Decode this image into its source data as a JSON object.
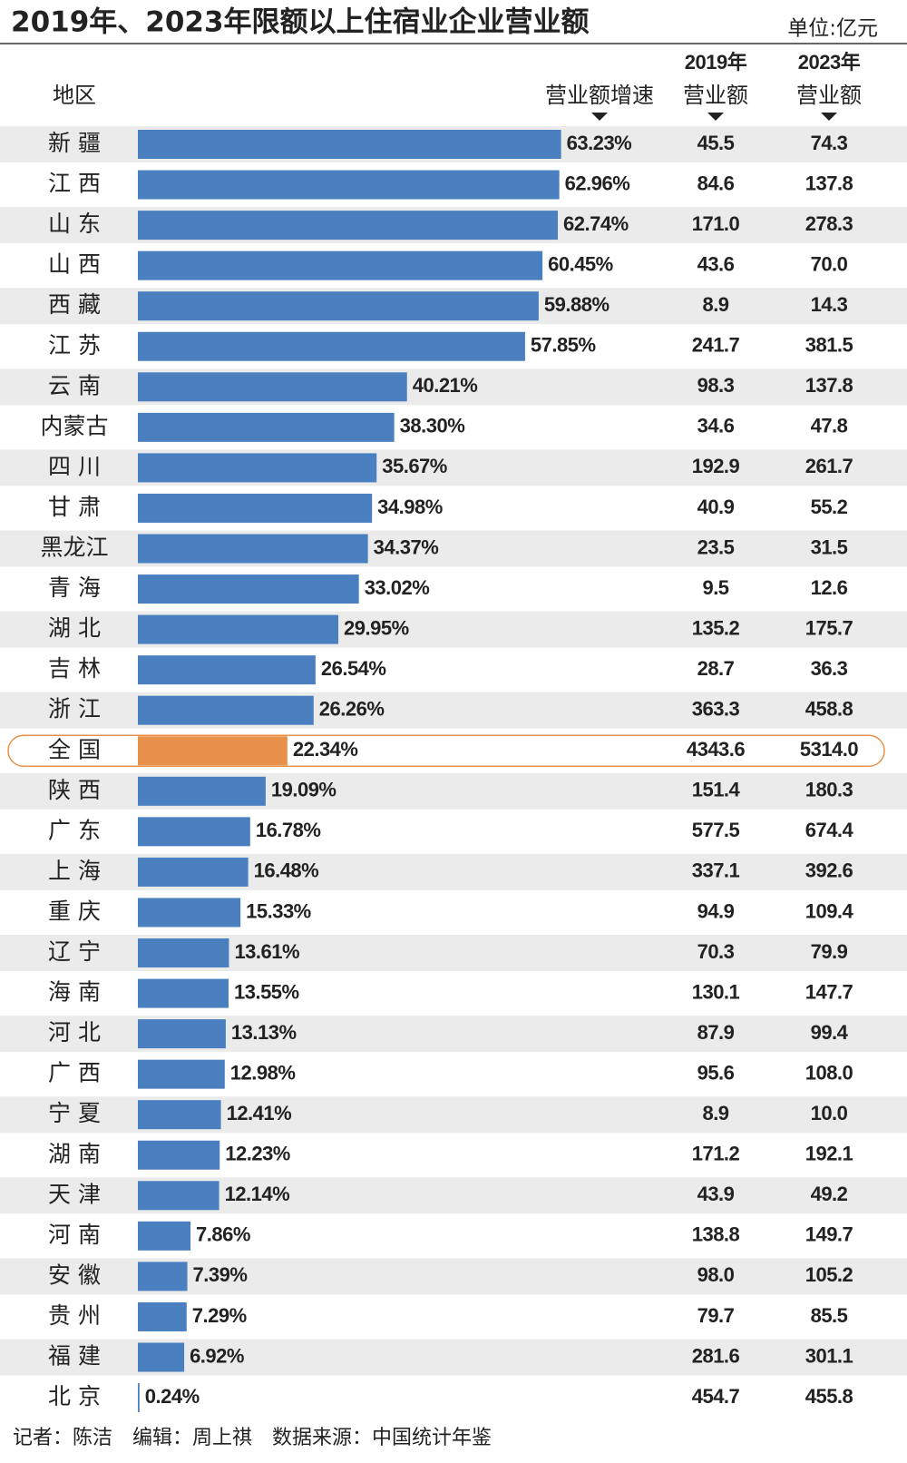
{
  "chart_data": {
    "type": "bar",
    "title": "2019年、2023年限额以上住宿业企业营业额",
    "unit": "单位:亿元",
    "category_header": "地区",
    "categories": [
      "新 疆",
      "江 西",
      "山 东",
      "山 西",
      "西 藏",
      "江 苏",
      "云 南",
      "内蒙古",
      "四 川",
      "甘 肃",
      "黑龙江",
      "青 海",
      "湖 北",
      "吉 林",
      "浙 江",
      "全 国",
      "陕 西",
      "广 东",
      "上 海",
      "重 庆",
      "辽 宁",
      "海 南",
      "河 北",
      "广 西",
      "宁 夏",
      "湖 南",
      "天 津",
      "河 南",
      "安 徽",
      "贵 州",
      "福 建",
      "北 京"
    ],
    "series": [
      {
        "name": "营业额增速",
        "color": "#4a80c0",
        "values": [
          63.23,
          62.96,
          62.74,
          60.45,
          59.88,
          57.85,
          40.21,
          38.3,
          35.67,
          34.98,
          34.37,
          33.02,
          29.95,
          26.54,
          26.26,
          22.34,
          19.09,
          16.78,
          16.48,
          15.33,
          13.61,
          13.55,
          13.13,
          12.98,
          12.41,
          12.23,
          12.14,
          7.86,
          7.39,
          7.29,
          6.92,
          0.24
        ],
        "value_labels": [
          "63.23%",
          "62.96%",
          "62.74%",
          "60.45%",
          "59.88%",
          "57.85%",
          "40.21%",
          "38.30%",
          "35.67%",
          "34.98%",
          "34.37%",
          "33.02%",
          "29.95%",
          "26.54%",
          "26.26%",
          "22.34%",
          "19.09%",
          "16.78%",
          "16.48%",
          "15.33%",
          "13.61%",
          "13.55%",
          "13.13%",
          "12.98%",
          "12.41%",
          "12.23%",
          "12.14%",
          "7.86%",
          "7.39%",
          "7.29%",
          "6.92%",
          "0.24%"
        ]
      }
    ],
    "highlight": {
      "category": "全 国",
      "color": "#e8914a"
    },
    "stripe_color": "#ebebeb",
    "table_columns": [
      {
        "header": [
          "2019年",
          "营业额"
        ],
        "values": [
          "45.5",
          "84.6",
          "171.0",
          "43.6",
          "8.9",
          "241.7",
          "98.3",
          "34.6",
          "192.9",
          "40.9",
          "23.5",
          "9.5",
          "135.2",
          "28.7",
          "363.3",
          "4343.6",
          "151.4",
          "577.5",
          "337.1",
          "94.9",
          "70.3",
          "130.1",
          "87.9",
          "95.6",
          "8.9",
          "171.2",
          "43.9",
          "138.8",
          "98.0",
          "79.7",
          "281.6",
          "454.7"
        ]
      },
      {
        "header": [
          "2023年",
          "营业额"
        ],
        "values": [
          "74.3",
          "137.8",
          "278.3",
          "70.0",
          "14.3",
          "381.5",
          "137.8",
          "47.8",
          "261.7",
          "55.2",
          "31.5",
          "12.6",
          "175.7",
          "36.3",
          "458.8",
          "5314.0",
          "180.3",
          "674.4",
          "392.6",
          "109.4",
          "79.9",
          "147.7",
          "99.4",
          "108.0",
          "10.0",
          "192.1",
          "49.2",
          "149.7",
          "105.2",
          "85.5",
          "301.1",
          "455.8"
        ]
      }
    ],
    "footer": "记者：陈洁　编辑：周上祺　数据来源：中国统计年鉴"
  }
}
